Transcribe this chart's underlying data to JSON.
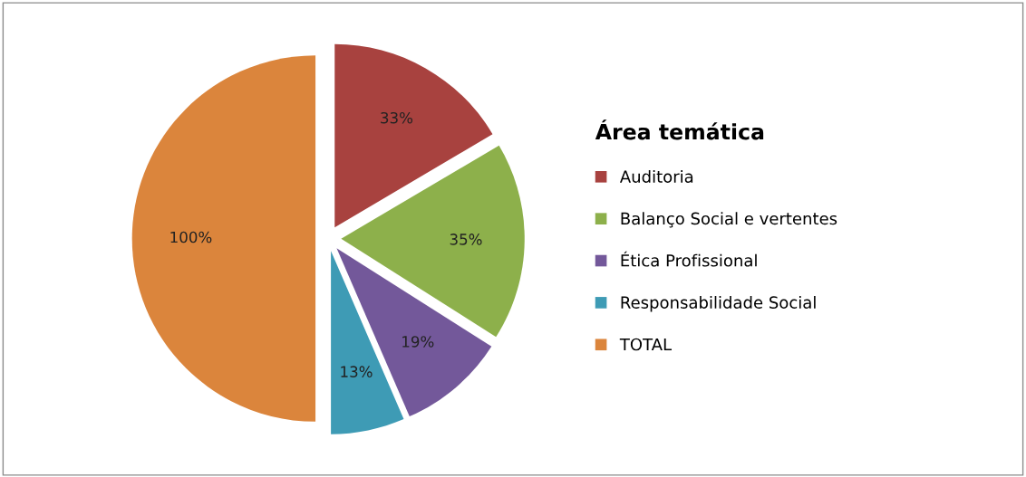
{
  "chart_data": {
    "type": "pie",
    "legend_title": "Área temática",
    "categories": [
      "Auditoria",
      "Balanço Social e vertentes",
      "Ética Profissional",
      "Responsabilidade Social",
      "TOTAL"
    ],
    "values": [
      33,
      35,
      19,
      13,
      100
    ],
    "colors": [
      "#a8423f",
      "#8db04b",
      "#73589a",
      "#3e9bb5",
      "#db853c"
    ],
    "value_labels": [
      "33%",
      "35%",
      "19%",
      "13%",
      "100%"
    ],
    "legend": "right"
  }
}
